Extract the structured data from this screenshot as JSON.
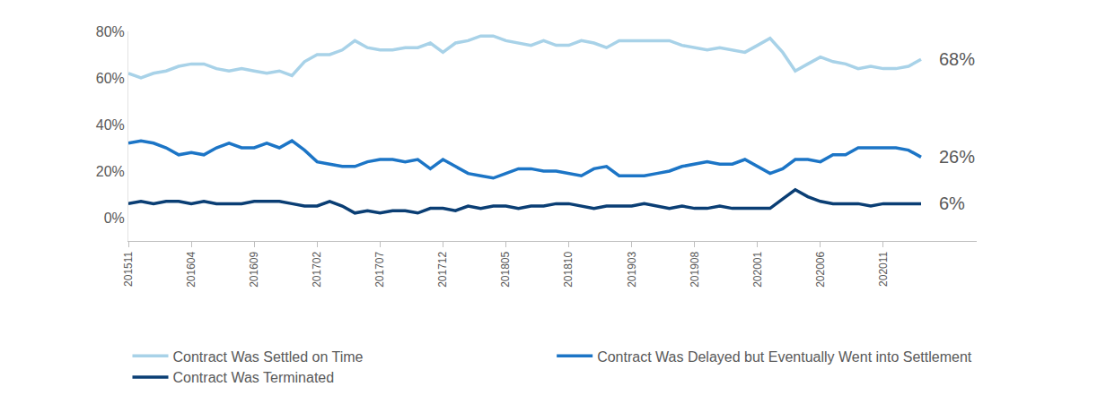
{
  "chart_data": {
    "type": "line",
    "categories": [
      "201511",
      null,
      null,
      null,
      null,
      "201604",
      null,
      null,
      null,
      null,
      "201609",
      null,
      null,
      null,
      null,
      "201702",
      null,
      null,
      null,
      null,
      "201707",
      null,
      null,
      null,
      null,
      "201712",
      null,
      null,
      null,
      null,
      "201805",
      null,
      null,
      null,
      null,
      "201810",
      null,
      null,
      null,
      null,
      "201903",
      null,
      null,
      null,
      null,
      "201908",
      null,
      null,
      null,
      null,
      "202001",
      null,
      null,
      null,
      null,
      "202006",
      null,
      null,
      null,
      null,
      "202011",
      null,
      null,
      null
    ],
    "series": [
      {
        "name": "Contract Was Settled on Time",
        "color": "#a8d2e8",
        "values": [
          62,
          60,
          62,
          63,
          65,
          66,
          66,
          64,
          63,
          64,
          63,
          62,
          63,
          61,
          67,
          70,
          70,
          72,
          76,
          73,
          72,
          72,
          73,
          73,
          75,
          71,
          75,
          76,
          78,
          78,
          76,
          75,
          74,
          76,
          74,
          74,
          76,
          75,
          73,
          76,
          76,
          76,
          76,
          76,
          74,
          73,
          72,
          73,
          72,
          71,
          74,
          77,
          71,
          63,
          66,
          69,
          67,
          66,
          64,
          65,
          64,
          64,
          65,
          68
        ],
        "value_labels": [
          null,
          null,
          null,
          null,
          null,
          null,
          null,
          null,
          null,
          null,
          null,
          null,
          null,
          null,
          null,
          null,
          null,
          null,
          null,
          null,
          null,
          null,
          null,
          null,
          null,
          null,
          null,
          null,
          null,
          null,
          null,
          null,
          null,
          null,
          null,
          null,
          null,
          null,
          null,
          null,
          null,
          null,
          null,
          null,
          null,
          null,
          null,
          null,
          null,
          null,
          null,
          null,
          null,
          null,
          null,
          null,
          null,
          null,
          null,
          null,
          null,
          null,
          null,
          "68%"
        ]
      },
      {
        "name": "Contract Was Delayed but Eventually Went into Settlement",
        "color": "#1c75c6",
        "values": [
          32,
          33,
          32,
          30,
          27,
          28,
          27,
          30,
          32,
          30,
          30,
          32,
          30,
          33,
          29,
          24,
          23,
          22,
          22,
          24,
          25,
          25,
          24,
          25,
          21,
          25,
          22,
          19,
          18,
          17,
          19,
          21,
          21,
          20,
          20,
          19,
          18,
          21,
          22,
          18,
          18,
          18,
          19,
          20,
          22,
          23,
          24,
          23,
          23,
          25,
          22,
          19,
          21,
          25,
          25,
          24,
          27,
          27,
          30,
          30,
          30,
          30,
          29,
          26
        ],
        "value_labels": [
          null,
          null,
          null,
          null,
          null,
          null,
          null,
          null,
          null,
          null,
          null,
          null,
          null,
          null,
          null,
          null,
          null,
          null,
          null,
          null,
          null,
          null,
          null,
          null,
          null,
          null,
          null,
          null,
          null,
          null,
          null,
          null,
          null,
          null,
          null,
          null,
          null,
          null,
          null,
          null,
          null,
          null,
          null,
          null,
          null,
          null,
          null,
          null,
          null,
          null,
          null,
          null,
          null,
          null,
          null,
          null,
          null,
          null,
          null,
          null,
          null,
          null,
          null,
          "26%"
        ]
      },
      {
        "name": "Contract Was Terminated",
        "color": "#0a3e74",
        "values": [
          6,
          7,
          6,
          7,
          7,
          6,
          7,
          6,
          6,
          6,
          7,
          7,
          7,
          6,
          5,
          5,
          7,
          5,
          2,
          3,
          2,
          3,
          3,
          2,
          4,
          4,
          3,
          5,
          4,
          5,
          5,
          4,
          5,
          5,
          6,
          6,
          5,
          4,
          5,
          5,
          5,
          6,
          5,
          4,
          5,
          4,
          4,
          5,
          4,
          4,
          4,
          4,
          8,
          12,
          9,
          7,
          6,
          6,
          6,
          5,
          6,
          6,
          6,
          6
        ],
        "value_labels": [
          null,
          null,
          null,
          null,
          null,
          null,
          null,
          null,
          null,
          null,
          null,
          null,
          null,
          null,
          null,
          null,
          null,
          null,
          null,
          null,
          null,
          null,
          null,
          null,
          null,
          null,
          null,
          null,
          null,
          null,
          null,
          null,
          null,
          null,
          null,
          null,
          null,
          null,
          null,
          null,
          null,
          null,
          null,
          null,
          null,
          null,
          null,
          null,
          null,
          null,
          null,
          null,
          null,
          null,
          null,
          null,
          null,
          null,
          null,
          null,
          null,
          null,
          null,
          "6%"
        ]
      }
    ],
    "ylim": [
      -10,
      80
    ],
    "yticks": [
      {
        "value": 0,
        "label": "0%"
      },
      {
        "value": 20,
        "label": "20%"
      },
      {
        "value": 40,
        "label": "40%"
      },
      {
        "value": 60,
        "label": "60%"
      },
      {
        "value": 80,
        "label": "80%"
      }
    ],
    "grid": false,
    "legend": "bottom"
  }
}
